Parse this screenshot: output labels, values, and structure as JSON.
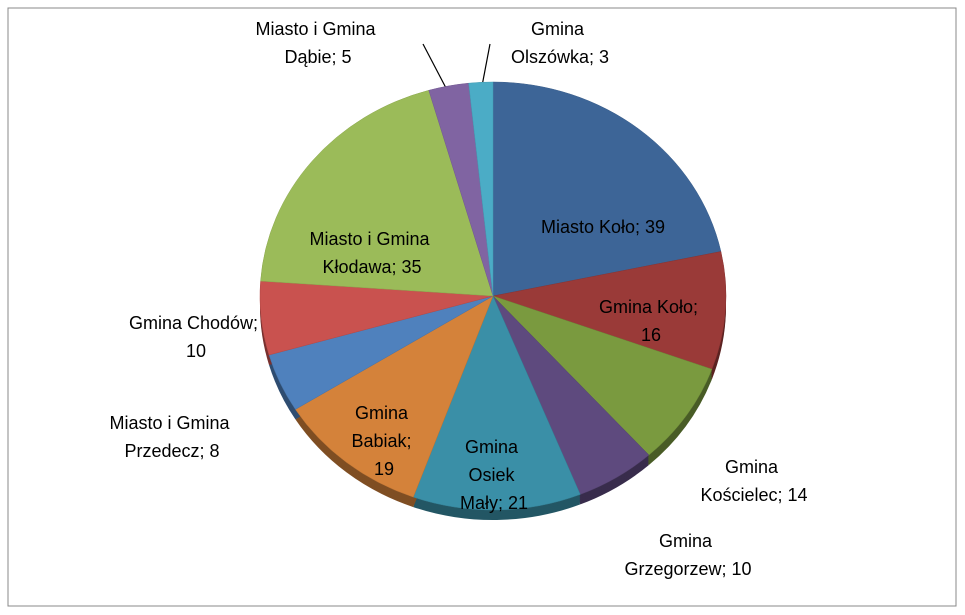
{
  "chart_data": {
    "type": "pie",
    "values": [
      39,
      16,
      14,
      10,
      21,
      19,
      8,
      10,
      35,
      5,
      3
    ],
    "value_labels": [
      "Miasto Koło; 39",
      "Gmina Koło; 16",
      "Gmina Kościelec; 14",
      "Gmina Grzegorzew; 10",
      "Gmina Osiek Mały; 21",
      "Gmina Babiak; 19",
      "Miasto i Gmina Przedecz; 8",
      "Gmina Chodów; 10",
      "Miasto i Gmina Kłodawa; 35",
      "Miasto i Gmina Dąbie; 5",
      "Gmina Olszówka; 3"
    ],
    "colors": [
      "#3d6597",
      "#9a3a38",
      "#7a9a3f",
      "#5e4a7e",
      "#3a8fa7",
      "#d4823a",
      "#4f81bd",
      "#c9524f",
      "#9bbb59",
      "#8064a2",
      "#4bacc6"
    ]
  }
}
